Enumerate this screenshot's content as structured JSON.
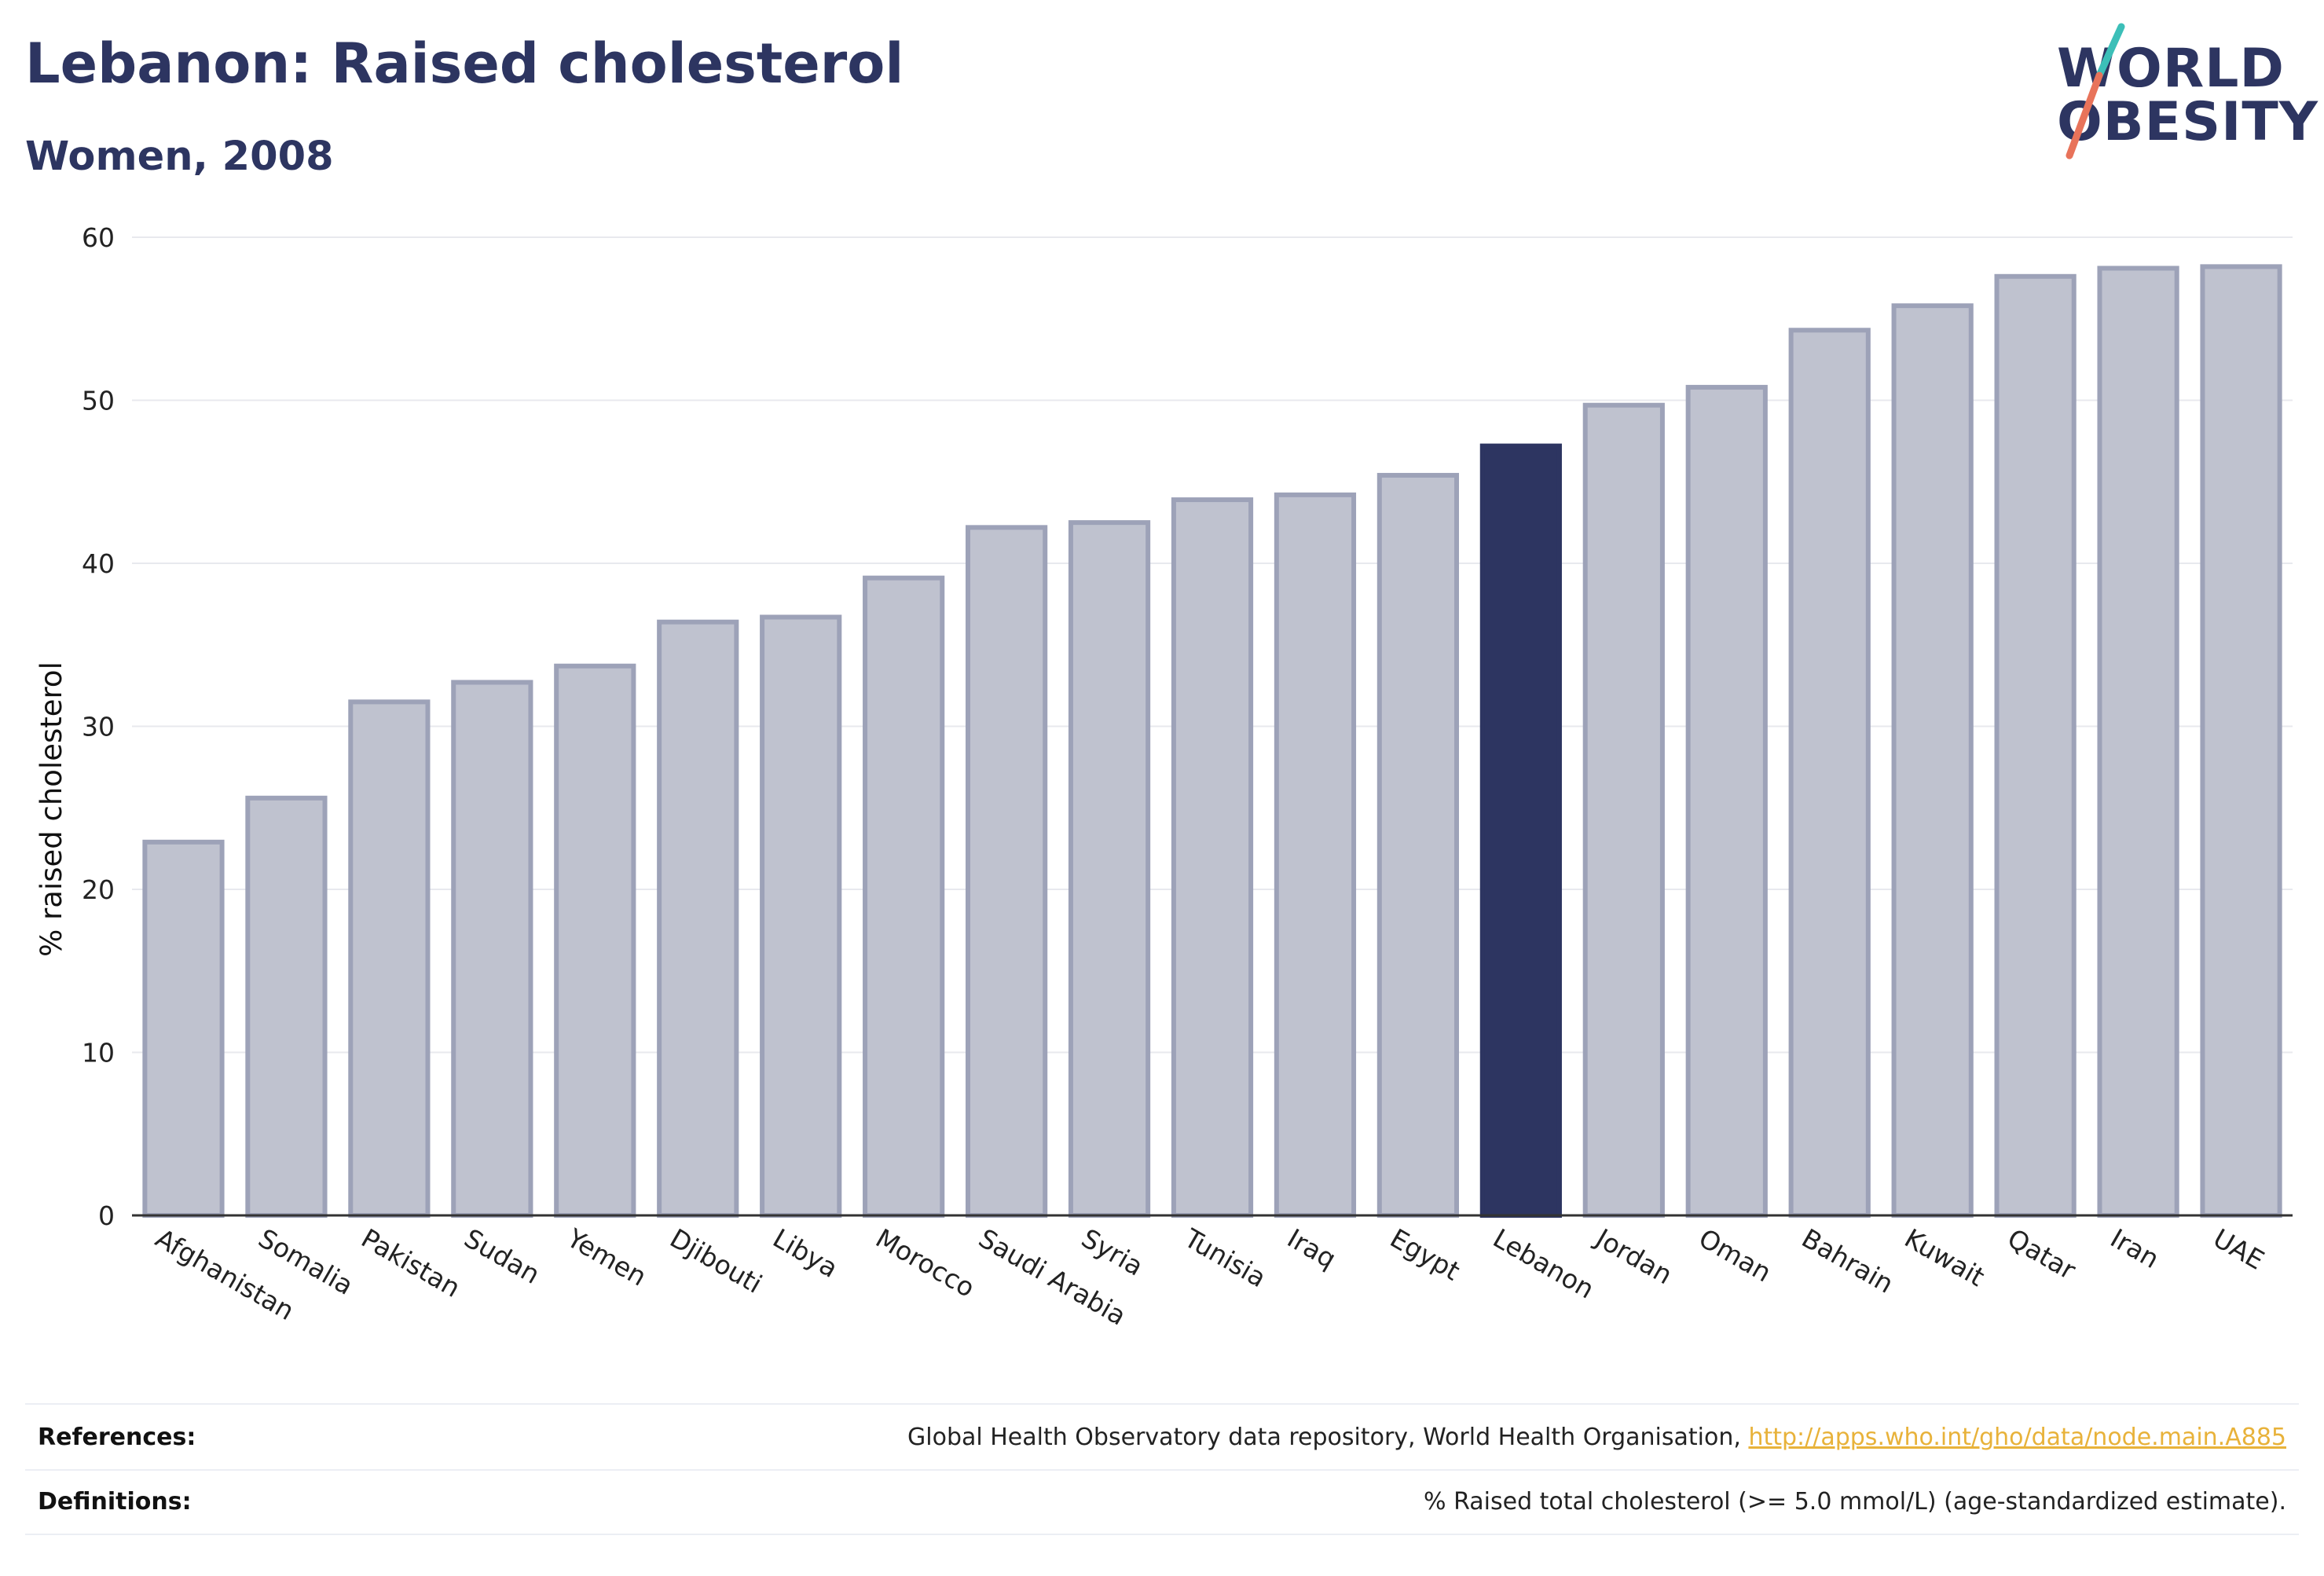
{
  "header": {
    "title": "Lebanon: Raised cholesterol",
    "subtitle": "Women, 2008"
  },
  "logo": {
    "line1": "WORLD",
    "line2": "OBESITY",
    "colors": {
      "text": "#2d3561",
      "slash_top": "#3cbfb8",
      "slash_bottom": "#e8735a"
    }
  },
  "chart_data": {
    "type": "bar",
    "categories": [
      "Afghanistan",
      "Somalia",
      "Pakistan",
      "Sudan",
      "Yemen",
      "Djibouti",
      "Libya",
      "Morocco",
      "Saudi Arabia",
      "Syria",
      "Tunisia",
      "Iraq",
      "Egypt",
      "Lebanon",
      "Jordan",
      "Oman",
      "Bahrain",
      "Kuwait",
      "Qatar",
      "Iran",
      "UAE"
    ],
    "values": [
      22.9,
      25.6,
      31.5,
      32.7,
      33.7,
      36.4,
      36.7,
      39.1,
      42.2,
      42.5,
      43.9,
      44.2,
      45.4,
      47.2,
      49.7,
      50.8,
      54.3,
      55.8,
      57.6,
      58.1,
      58.2
    ],
    "highlight": "Lebanon",
    "title": "Lebanon: Raised cholesterol",
    "subtitle": "Women, 2008",
    "xlabel": "",
    "ylabel": "% raised cholesterol",
    "ylim": [
      0,
      60
    ],
    "yticks": [
      0,
      10,
      20,
      30,
      40,
      50,
      60
    ],
    "grid": true,
    "colors": {
      "bar": "#bfc2cf",
      "bar_border": "#9da2b8",
      "highlight": "#2d3561"
    }
  },
  "footer": {
    "references_label": "References:",
    "references_text": "Global Health Observatory data repository, World Health Organisation, ",
    "references_link": "http://apps.who.int/gho/data/node.main.A885",
    "definitions_label": "Definitions:",
    "definitions_text": "% Raised total cholesterol (>= 5.0 mmol/L) (age-standardized estimate)."
  }
}
